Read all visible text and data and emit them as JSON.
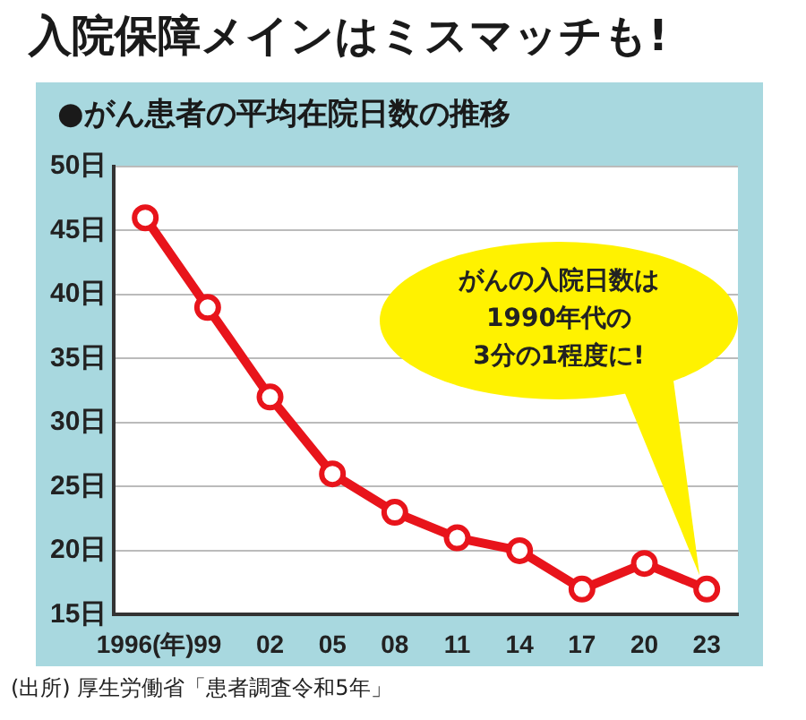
{
  "chart_data": {
    "type": "line",
    "title": "入院保障メインはミスマッチも!",
    "subtitle": "●がん患者の平均在院日数の推移",
    "categories": [
      "1996(年)",
      "99",
      "02",
      "05",
      "08",
      "11",
      "14",
      "17",
      "20",
      "23"
    ],
    "series": [
      {
        "color": "#e8141b",
        "values": [
          46,
          39,
          32,
          26,
          23,
          21,
          20,
          17,
          19,
          17
        ]
      }
    ],
    "ylim": [
      15,
      50
    ],
    "yticks": [
      {
        "value": 15,
        "label": "15日"
      },
      {
        "value": 20,
        "label": "20日"
      },
      {
        "value": 25,
        "label": "25日"
      },
      {
        "value": 30,
        "label": "30日"
      },
      {
        "value": 35,
        "label": "35日"
      },
      {
        "value": 40,
        "label": "40日"
      },
      {
        "value": 45,
        "label": "45日"
      },
      {
        "value": 50,
        "label": "50日"
      }
    ],
    "grid": "y",
    "marker": "circle",
    "line_style": "solid",
    "legend": false,
    "annotations": [
      "がんの入院日数は\n1990年代の\n3分の1程度に!",
      "(出所) 厚生労働省「患者調査令和5年」"
    ]
  }
}
